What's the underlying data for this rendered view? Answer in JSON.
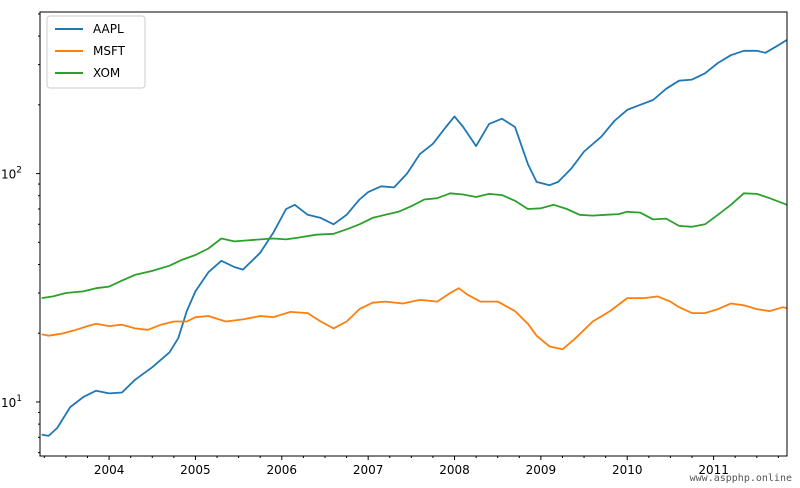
{
  "chart_data": {
    "type": "line",
    "title": "",
    "xlabel": "",
    "ylabel": "",
    "yscale": "log",
    "xlim": [
      2003.2,
      2011.85
    ],
    "ylim": [
      5.8,
      510
    ],
    "grid": false,
    "legend_position": "top-left",
    "x_ticks": [
      {
        "value": 2004,
        "label": "2004"
      },
      {
        "value": 2005,
        "label": "2005"
      },
      {
        "value": 2006,
        "label": "2006"
      },
      {
        "value": 2007,
        "label": "2007"
      },
      {
        "value": 2008,
        "label": "2008"
      },
      {
        "value": 2009,
        "label": "2009"
      },
      {
        "value": 2010,
        "label": "2010"
      },
      {
        "value": 2011,
        "label": "2011"
      }
    ],
    "y_ticks": [
      {
        "value": 10,
        "base": "10",
        "exp": "1"
      },
      {
        "value": 100,
        "base": "10",
        "exp": "2"
      }
    ],
    "series": [
      {
        "name": "AAPL",
        "color": "#1f77b4",
        "points": [
          [
            2003.22,
            7.2
          ],
          [
            2003.3,
            7.1
          ],
          [
            2003.4,
            7.7
          ],
          [
            2003.55,
            9.5
          ],
          [
            2003.7,
            10.5
          ],
          [
            2003.85,
            11.2
          ],
          [
            2004.0,
            10.9
          ],
          [
            2004.15,
            11.0
          ],
          [
            2004.3,
            12.5
          ],
          [
            2004.5,
            14.2
          ],
          [
            2004.7,
            16.5
          ],
          [
            2004.8,
            19.0
          ],
          [
            2004.9,
            25.0
          ],
          [
            2005.0,
            30.5
          ],
          [
            2005.15,
            37.0
          ],
          [
            2005.3,
            41.5
          ],
          [
            2005.45,
            39.0
          ],
          [
            2005.55,
            38.0
          ],
          [
            2005.75,
            45.0
          ],
          [
            2005.9,
            55.0
          ],
          [
            2006.05,
            70.0
          ],
          [
            2006.15,
            73.0
          ],
          [
            2006.3,
            66.0
          ],
          [
            2006.45,
            64.0
          ],
          [
            2006.6,
            60.0
          ],
          [
            2006.75,
            66.0
          ],
          [
            2006.9,
            77.0
          ],
          [
            2007.0,
            83.0
          ],
          [
            2007.15,
            88.0
          ],
          [
            2007.3,
            87.0
          ],
          [
            2007.45,
            100.0
          ],
          [
            2007.6,
            122.0
          ],
          [
            2007.75,
            135.0
          ],
          [
            2007.9,
            160.0
          ],
          [
            2008.0,
            178.0
          ],
          [
            2008.1,
            160.0
          ],
          [
            2008.25,
            132.0
          ],
          [
            2008.4,
            165.0
          ],
          [
            2008.55,
            174.0
          ],
          [
            2008.7,
            160.0
          ],
          [
            2008.85,
            110.0
          ],
          [
            2008.95,
            92.0
          ],
          [
            2009.1,
            89.0
          ],
          [
            2009.2,
            92.0
          ],
          [
            2009.35,
            105.0
          ],
          [
            2009.5,
            125.0
          ],
          [
            2009.7,
            145.0
          ],
          [
            2009.85,
            170.0
          ],
          [
            2010.0,
            190.0
          ],
          [
            2010.15,
            200.0
          ],
          [
            2010.3,
            210.0
          ],
          [
            2010.45,
            235.0
          ],
          [
            2010.6,
            255.0
          ],
          [
            2010.75,
            258.0
          ],
          [
            2010.9,
            275.0
          ],
          [
            2011.05,
            305.0
          ],
          [
            2011.2,
            330.0
          ],
          [
            2011.35,
            345.0
          ],
          [
            2011.5,
            345.0
          ],
          [
            2011.6,
            338.0
          ],
          [
            2011.75,
            365.0
          ],
          [
            2011.85,
            385.0
          ]
        ]
      },
      {
        "name": "MSFT",
        "color": "#ff7f0e",
        "points": [
          [
            2003.22,
            19.8
          ],
          [
            2003.3,
            19.5
          ],
          [
            2003.45,
            19.9
          ],
          [
            2003.6,
            20.6
          ],
          [
            2003.75,
            21.5
          ],
          [
            2003.85,
            22.0
          ],
          [
            2004.0,
            21.5
          ],
          [
            2004.15,
            21.8
          ],
          [
            2004.3,
            21.0
          ],
          [
            2004.45,
            20.7
          ],
          [
            2004.6,
            21.8
          ],
          [
            2004.75,
            22.5
          ],
          [
            2004.9,
            22.5
          ],
          [
            2005.0,
            23.5
          ],
          [
            2005.15,
            23.8
          ],
          [
            2005.35,
            22.5
          ],
          [
            2005.55,
            23.0
          ],
          [
            2005.75,
            23.8
          ],
          [
            2005.9,
            23.5
          ],
          [
            2006.1,
            24.8
          ],
          [
            2006.3,
            24.5
          ],
          [
            2006.45,
            22.5
          ],
          [
            2006.6,
            21.0
          ],
          [
            2006.75,
            22.5
          ],
          [
            2006.9,
            25.5
          ],
          [
            2007.05,
            27.2
          ],
          [
            2007.2,
            27.5
          ],
          [
            2007.4,
            27.0
          ],
          [
            2007.6,
            28.0
          ],
          [
            2007.8,
            27.5
          ],
          [
            2007.95,
            30.0
          ],
          [
            2008.05,
            31.5
          ],
          [
            2008.15,
            29.5
          ],
          [
            2008.3,
            27.5
          ],
          [
            2008.5,
            27.5
          ],
          [
            2008.7,
            25.0
          ],
          [
            2008.85,
            22.0
          ],
          [
            2008.95,
            19.5
          ],
          [
            2009.1,
            17.5
          ],
          [
            2009.25,
            17.0
          ],
          [
            2009.4,
            19.0
          ],
          [
            2009.6,
            22.5
          ],
          [
            2009.8,
            25.0
          ],
          [
            2010.0,
            28.5
          ],
          [
            2010.2,
            28.5
          ],
          [
            2010.35,
            29.0
          ],
          [
            2010.5,
            27.5
          ],
          [
            2010.6,
            26.0
          ],
          [
            2010.75,
            24.5
          ],
          [
            2010.9,
            24.5
          ],
          [
            2011.05,
            25.5
          ],
          [
            2011.2,
            27.0
          ],
          [
            2011.35,
            26.5
          ],
          [
            2011.5,
            25.5
          ],
          [
            2011.65,
            25.0
          ],
          [
            2011.8,
            26.0
          ],
          [
            2011.85,
            25.8
          ]
        ]
      },
      {
        "name": "XOM",
        "color": "#2ca02c",
        "points": [
          [
            2003.22,
            28.5
          ],
          [
            2003.35,
            29.0
          ],
          [
            2003.5,
            30.0
          ],
          [
            2003.7,
            30.5
          ],
          [
            2003.85,
            31.5
          ],
          [
            2004.0,
            32.0
          ],
          [
            2004.15,
            34.0
          ],
          [
            2004.3,
            36.0
          ],
          [
            2004.5,
            37.5
          ],
          [
            2004.7,
            39.5
          ],
          [
            2004.85,
            42.0
          ],
          [
            2005.0,
            44.0
          ],
          [
            2005.15,
            47.0
          ],
          [
            2005.3,
            52.0
          ],
          [
            2005.45,
            50.5
          ],
          [
            2005.6,
            51.0
          ],
          [
            2005.75,
            51.5
          ],
          [
            2005.9,
            52.0
          ],
          [
            2006.05,
            51.5
          ],
          [
            2006.2,
            52.5
          ],
          [
            2006.4,
            54.0
          ],
          [
            2006.6,
            54.5
          ],
          [
            2006.75,
            57.0
          ],
          [
            2006.9,
            60.0
          ],
          [
            2007.05,
            64.0
          ],
          [
            2007.2,
            66.0
          ],
          [
            2007.35,
            68.0
          ],
          [
            2007.5,
            72.0
          ],
          [
            2007.65,
            77.0
          ],
          [
            2007.8,
            78.0
          ],
          [
            2007.95,
            82.0
          ],
          [
            2008.1,
            81.0
          ],
          [
            2008.25,
            79.0
          ],
          [
            2008.4,
            81.5
          ],
          [
            2008.55,
            80.5
          ],
          [
            2008.7,
            76.0
          ],
          [
            2008.85,
            70.0
          ],
          [
            2009.0,
            70.5
          ],
          [
            2009.15,
            73.0
          ],
          [
            2009.3,
            70.0
          ],
          [
            2009.45,
            66.0
          ],
          [
            2009.6,
            65.5
          ],
          [
            2009.75,
            66.0
          ],
          [
            2009.9,
            66.5
          ],
          [
            2010.0,
            68.0
          ],
          [
            2010.15,
            67.5
          ],
          [
            2010.3,
            63.0
          ],
          [
            2010.45,
            63.5
          ],
          [
            2010.6,
            59.0
          ],
          [
            2010.75,
            58.5
          ],
          [
            2010.9,
            60.0
          ],
          [
            2011.05,
            66.0
          ],
          [
            2011.2,
            73.0
          ],
          [
            2011.35,
            82.0
          ],
          [
            2011.5,
            81.5
          ],
          [
            2011.65,
            78.0
          ],
          [
            2011.85,
            73.0
          ]
        ]
      }
    ]
  },
  "watermark": "www.aspphp.online"
}
